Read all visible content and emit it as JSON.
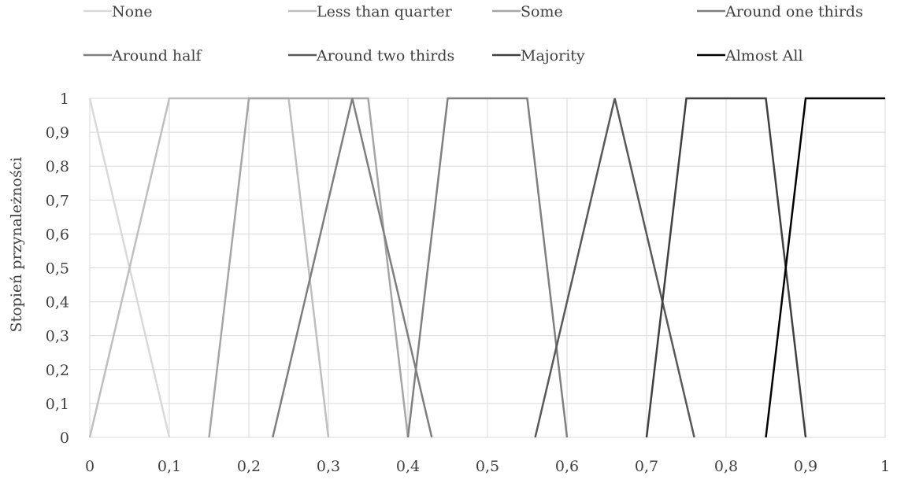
{
  "chart_data": {
    "type": "line",
    "title": "",
    "xlabel": "",
    "ylabel": "Stopień przynależności",
    "xlim": [
      0,
      1
    ],
    "ylim": [
      0,
      1
    ],
    "x_ticks": [
      0,
      0.1,
      0.2,
      0.3,
      0.4,
      0.5,
      0.6,
      0.7,
      0.8,
      0.9,
      1
    ],
    "x_tick_labels": [
      "0",
      "0,1",
      "0,2",
      "0,3",
      "0,4",
      "0,5",
      "0,6",
      "0,7",
      "0,8",
      "0,9",
      "1"
    ],
    "y_ticks": [
      0,
      0.1,
      0.2,
      0.3,
      0.4,
      0.5,
      0.6,
      0.7,
      0.8,
      0.9,
      1
    ],
    "y_tick_labels": [
      "0",
      "0,1",
      "0,2",
      "0,3",
      "0,4",
      "0,5",
      "0,6",
      "0,7",
      "0,8",
      "0,9",
      "1"
    ],
    "grid": true,
    "legend_position": "top",
    "series": [
      {
        "name": "None",
        "color": "#d9d9d9",
        "points": [
          [
            0,
            1
          ],
          [
            0.1,
            0
          ]
        ]
      },
      {
        "name": "Less than quarter",
        "color": "#bfbfbf",
        "points": [
          [
            0,
            0
          ],
          [
            0.1,
            1
          ],
          [
            0.25,
            1
          ],
          [
            0.3,
            0
          ]
        ]
      },
      {
        "name": "Some",
        "color": "#a6a6a6",
        "points": [
          [
            0.15,
            0
          ],
          [
            0.2,
            1
          ],
          [
            0.35,
            1
          ],
          [
            0.4,
            0
          ]
        ]
      },
      {
        "name": "Around one thirds",
        "color": "#7f7f7f",
        "points": [
          [
            0.23,
            0
          ],
          [
            0.33,
            1
          ],
          [
            0.43,
            0
          ]
        ]
      },
      {
        "name": "Around half",
        "color": "#808080",
        "points": [
          [
            0.4,
            0
          ],
          [
            0.45,
            1
          ],
          [
            0.55,
            1
          ],
          [
            0.6,
            0
          ]
        ]
      },
      {
        "name": "Around two thirds",
        "color": "#595959",
        "points": [
          [
            0.56,
            0
          ],
          [
            0.66,
            1
          ],
          [
            0.76,
            0
          ]
        ]
      },
      {
        "name": "Majority",
        "color": "#404040",
        "points": [
          [
            0.7,
            0
          ],
          [
            0.75,
            1
          ],
          [
            0.85,
            1
          ],
          [
            0.9,
            0
          ]
        ]
      },
      {
        "name": "Almost All",
        "color": "#000000",
        "points": [
          [
            0.85,
            0
          ],
          [
            0.9,
            1
          ],
          [
            1,
            1
          ]
        ]
      }
    ]
  }
}
